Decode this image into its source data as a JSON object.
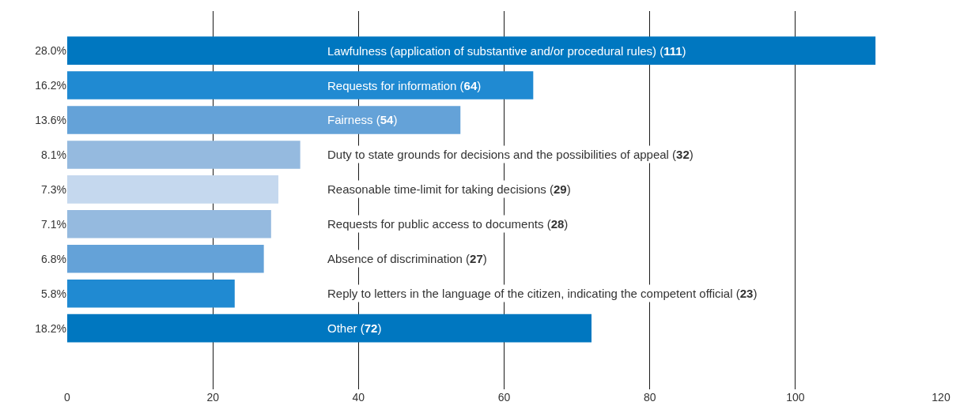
{
  "chart_data": {
    "type": "bar",
    "orientation": "horizontal",
    "categories": [
      "28.0%",
      "16.2%",
      "13.6%",
      "8.1%",
      "7.3%",
      "7.1%",
      "6.8%",
      "5.8%",
      "18.2%"
    ],
    "values": [
      111,
      64,
      54,
      32,
      29,
      28,
      27,
      23,
      72
    ],
    "colors": [
      "#0077c0",
      "#208ad2",
      "#64a2d8",
      "#95badf",
      "#c5d8ee",
      "#95badf",
      "#64a2d8",
      "#208ad2",
      "#0077c0"
    ],
    "annotations": [
      "Lawfulness (application of substantive and/or procedural rules) (111)",
      "Requests for information (64)",
      "Fairness (54)",
      "Duty to state grounds for decisions and the possibilities of appeal (32)",
      "Reasonable time-limit for taking decisions (29)",
      "Requests for public access to documents (28)",
      "Absence of discrimination (27)",
      "Reply to letters in the language of the citizen, indicating the competent official (23)",
      "Other (72)"
    ],
    "xlim": [
      0,
      120
    ],
    "xticks": [
      0,
      20,
      40,
      60,
      80,
      100,
      120
    ],
    "grid": "x"
  }
}
